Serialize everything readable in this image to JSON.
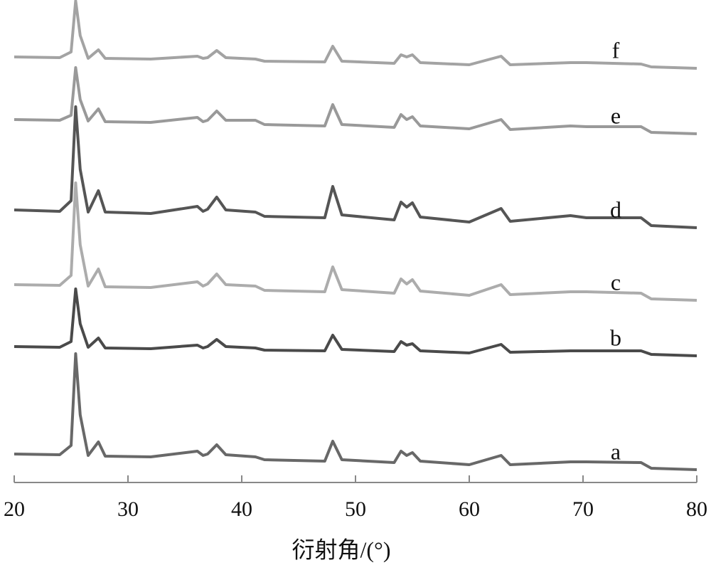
{
  "chart_data": {
    "type": "line",
    "x_label": "衍射角/(°)",
    "x": [
      20,
      24,
      25,
      25.4,
      25.8,
      26.5,
      27.4,
      28,
      32,
      36.1,
      36.6,
      37,
      37.8,
      38.6,
      41.2,
      42,
      47.3,
      48,
      48.8,
      53.4,
      54,
      54.5,
      55,
      55.7,
      60,
      62.8,
      63.6,
      68.9,
      70.3,
      75.1,
      76,
      80
    ],
    "xlim": [
      20,
      80
    ],
    "xticks": [
      20,
      30,
      40,
      50,
      60,
      70,
      80
    ],
    "ylim": [
      0,
      678
    ],
    "series": [
      {
        "name": "f",
        "color": "#a3a3a3",
        "values": [
          598,
          597,
          605,
          677,
          628,
          596,
          608,
          596,
          595,
          599,
          596,
          597,
          607,
          597,
          595,
          592,
          591,
          613,
          592,
          589,
          601,
          598,
          601,
          590,
          587,
          599,
          587,
          590,
          590,
          588,
          584,
          582
        ]
      },
      {
        "name": "e",
        "color": "#999999",
        "values": [
          510,
          509,
          516,
          583,
          538,
          508,
          525,
          507,
          506,
          513,
          507,
          509,
          522,
          509,
          509,
          503,
          501,
          531,
          503,
          499,
          517,
          510,
          514,
          501,
          497,
          510,
          496,
          501,
          500,
          500,
          492,
          490
        ]
      },
      {
        "name": "d",
        "color": "#555555",
        "values": [
          383,
          381,
          396,
          528,
          440,
          380,
          410,
          380,
          378,
          388,
          381,
          384,
          401,
          383,
          380,
          374,
          372,
          416,
          376,
          369,
          394,
          387,
          393,
          373,
          366,
          385,
          367,
          375,
          372,
          372,
          361,
          358
        ]
      },
      {
        "name": "c",
        "color": "#acacac",
        "values": [
          278,
          277,
          291,
          421,
          334,
          276,
          300,
          275,
          274,
          282,
          276,
          279,
          293,
          278,
          276,
          270,
          268,
          303,
          271,
          266,
          286,
          279,
          285,
          269,
          263,
          278,
          264,
          268,
          268,
          266,
          258,
          256
        ]
      },
      {
        "name": "b",
        "color": "#4a4a4a",
        "values": [
          191,
          190,
          198,
          272,
          223,
          190,
          203,
          189,
          188,
          193,
          189,
          191,
          201,
          191,
          189,
          186,
          185,
          207,
          187,
          184,
          198,
          193,
          195,
          185,
          182,
          194,
          183,
          185,
          185,
          185,
          180,
          178
        ]
      },
      {
        "name": "a",
        "color": "#686868",
        "values": [
          40,
          39,
          52,
          181,
          95,
          38,
          57,
          37,
          36,
          44,
          38,
          40,
          53,
          39,
          36,
          32,
          30,
          58,
          32,
          28,
          44,
          38,
          42,
          30,
          25,
          38,
          25,
          29,
          29,
          28,
          20,
          18
        ]
      }
    ]
  }
}
